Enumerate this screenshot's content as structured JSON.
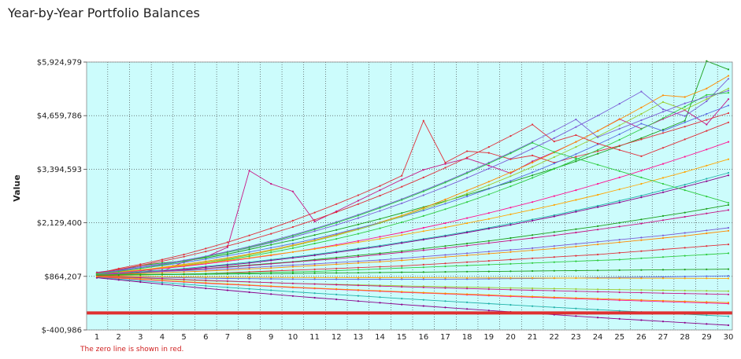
{
  "page": {
    "title": "Year-by-Year Portfolio Balances",
    "footnote": "The zero line is shown in red."
  },
  "colors": {
    "plot_background": "#ccfcfc",
    "zero_line": "#e03030",
    "grid": "#333333",
    "series_palette": [
      "#1aa01a",
      "#c71585",
      "#ff8c00",
      "#7b5ed6",
      "#e0303a",
      "#2ecc40",
      "#5b6ee1",
      "#9acd32",
      "#ff1493",
      "#20b2aa",
      "#8b008b",
      "#ffa500"
    ]
  },
  "chart_data": {
    "type": "line",
    "title": "",
    "xlabel": "",
    "ylabel": "Value",
    "x": [
      1,
      2,
      3,
      4,
      5,
      6,
      7,
      8,
      9,
      10,
      11,
      12,
      13,
      14,
      15,
      16,
      17,
      18,
      19,
      20,
      21,
      22,
      23,
      24,
      25,
      26,
      27,
      28,
      29,
      30
    ],
    "ylim": [
      -400986,
      5924979
    ],
    "y_ticks": [
      -400986,
      864207,
      2129400,
      3394593,
      4659786,
      5924979
    ],
    "y_tick_labels": [
      "$-400,986",
      "$864,207",
      "$2,129,400",
      "$3,394,593",
      "$4,659,786",
      "$5,924,979"
    ],
    "grid": true,
    "legend": "none",
    "zero_line": 0,
    "series": [
      {
        "values": [
          950000,
          1000000,
          1120000,
          1180000,
          1230000,
          1300000,
          1390000,
          1500000,
          1610000,
          1720000,
          1840000,
          1960000,
          2090000,
          2220000,
          2360000,
          2500000,
          2640000,
          2790000,
          2940000,
          3090000,
          3250000,
          3410000,
          3580000,
          3760000,
          3940000,
          4130000,
          4330000,
          4540000,
          5950000,
          5750000
        ]
      },
      {
        "values": [
          950000,
          900000,
          1020000,
          980000,
          1210000,
          1320000,
          1550000,
          3360000,
          3050000,
          2870000,
          2160000,
          2400000,
          2650000,
          2900000,
          3150000,
          3380000,
          3520000,
          3650000,
          3480000,
          3300000,
          3580000,
          3800000,
          4040000,
          4300000,
          4580000,
          4350000,
          4580000,
          4790000,
          4450000,
          5050000
        ]
      },
      {
        "values": [
          920000,
          960000,
          1010000,
          1080000,
          1150000,
          1220000,
          1300000,
          1390000,
          1490000,
          1600000,
          1720000,
          1850000,
          1990000,
          2140000,
          2300000,
          2480000,
          2680000,
          2890000,
          3100000,
          3320000,
          3550000,
          3790000,
          4040000,
          4300000,
          4570000,
          4850000,
          5140000,
          5100000,
          5300000,
          5600000
        ]
      },
      {
        "values": [
          960000,
          1020000,
          1090000,
          1160000,
          1240000,
          1330000,
          1430000,
          1540000,
          1660000,
          1790000,
          1930000,
          2080000,
          2240000,
          2410000,
          2590000,
          2780000,
          2980000,
          3190000,
          3410000,
          3640000,
          3880000,
          4130000,
          4390000,
          4660000,
          4940000,
          5230000,
          4810000,
          4650000,
          5000000,
          5530000
        ]
      },
      {
        "values": [
          930000,
          1050000,
          1150000,
          1260000,
          1380000,
          1520000,
          1670000,
          1830000,
          2000000,
          2180000,
          2370000,
          2570000,
          2780000,
          3000000,
          3240000,
          4540000,
          3550000,
          3820000,
          3780000,
          3630000,
          3720000,
          3550000,
          3690000,
          3820000,
          3950000,
          4100000,
          4250000,
          4400000,
          4560000,
          4720000
        ]
      },
      {
        "values": [
          900000,
          940000,
          990000,
          1050000,
          1110000,
          1180000,
          1260000,
          1340000,
          1430000,
          1530000,
          1640000,
          1750000,
          1870000,
          2000000,
          2140000,
          2290000,
          2450000,
          2620000,
          2800000,
          2990000,
          3190000,
          3400000,
          3620000,
          3850000,
          4090000,
          4340000,
          4600000,
          4870000,
          5150000,
          5200000
        ]
      },
      {
        "values": [
          940000,
          990000,
          1050000,
          1120000,
          1190000,
          1270000,
          1350000,
          1440000,
          1540000,
          1640000,
          1750000,
          1870000,
          2000000,
          2130000,
          2270000,
          2420000,
          2580000,
          2750000,
          2930000,
          3120000,
          3320000,
          3530000,
          3750000,
          3980000,
          4220000,
          4470000,
          4300000,
          4500000,
          4700000,
          4900000
        ]
      },
      {
        "values": [
          910000,
          950000,
          1000000,
          1060000,
          1130000,
          1200000,
          1280000,
          1370000,
          1470000,
          1580000,
          1700000,
          1830000,
          1970000,
          2120000,
          2280000,
          2450000,
          2630000,
          2820000,
          3020000,
          3230000,
          3450000,
          3680000,
          3920000,
          4170000,
          4430000,
          4700000,
          4980000,
          4800000,
          5050000,
          5300000
        ]
      },
      {
        "values": [
          920000,
          960000,
          1000000,
          1050000,
          1100000,
          1160000,
          1220000,
          1290000,
          1360000,
          1440000,
          1520000,
          1610000,
          1700000,
          1800000,
          1900000,
          2010000,
          2120000,
          2240000,
          2360000,
          2490000,
          2620000,
          2760000,
          2900000,
          3050000,
          3200000,
          3360000,
          3520000,
          3690000,
          3860000,
          4040000
        ]
      },
      {
        "values": [
          900000,
          930000,
          970000,
          1010000,
          1050000,
          1100000,
          1150000,
          1200000,
          1260000,
          1320000,
          1380000,
          1450000,
          1520000,
          1590000,
          1670000,
          1750000,
          1830000,
          1920000,
          2010000,
          2110000,
          2210000,
          2310000,
          2420000,
          2530000,
          2650000,
          2770000,
          2900000,
          3030000,
          3170000,
          3310000
        ]
      },
      {
        "values": [
          880000,
          910000,
          950000,
          990000,
          1030000,
          1080000,
          1130000,
          1180000,
          1240000,
          1300000,
          1360000,
          1430000,
          1500000,
          1570000,
          1650000,
          1730000,
          1810000,
          1900000,
          1990000,
          2080000,
          2180000,
          2280000,
          2390000,
          2500000,
          2610000,
          2730000,
          2850000,
          2980000,
          3110000,
          3250000
        ]
      },
      {
        "values": [
          930000,
          970000,
          1020000,
          1070000,
          1120000,
          1180000,
          1240000,
          1300000,
          1370000,
          1440000,
          1510000,
          1590000,
          1670000,
          1750000,
          1840000,
          1930000,
          2020000,
          2120000,
          2220000,
          2330000,
          2440000,
          2550000,
          2670000,
          2790000,
          2920000,
          3050000,
          3190000,
          3330000,
          3480000,
          3630000
        ]
      },
      {
        "values": [
          890000,
          920000,
          950000,
          980000,
          1010000,
          1050000,
          1090000,
          1130000,
          1170000,
          1210000,
          1260000,
          1310000,
          1360000,
          1410000,
          1460000,
          1520000,
          1580000,
          1640000,
          1700000,
          1770000,
          1840000,
          1910000,
          1980000,
          2050000,
          2130000,
          2210000,
          2290000,
          2370000,
          2460000,
          2550000
        ]
      },
      {
        "values": [
          910000,
          930000,
          960000,
          990000,
          1020000,
          1050000,
          1080000,
          1120000,
          1160000,
          1200000,
          1240000,
          1280000,
          1330000,
          1380000,
          1430000,
          1480000,
          1530000,
          1590000,
          1650000,
          1710000,
          1770000,
          1830000,
          1900000,
          1970000,
          2040000,
          2110000,
          2190000,
          2270000,
          2350000,
          2430000
        ]
      },
      {
        "values": [
          900000,
          910000,
          930000,
          950000,
          970000,
          990000,
          1010000,
          1040000,
          1060000,
          1090000,
          1120000,
          1150000,
          1180000,
          1210000,
          1240000,
          1280000,
          1320000,
          1360000,
          1400000,
          1440000,
          1480000,
          1520000,
          1570000,
          1620000,
          1670000,
          1720000,
          1770000,
          1820000,
          1880000,
          1940000
        ]
      },
      {
        "values": [
          920000,
          940000,
          960000,
          980000,
          1000000,
          1020000,
          1040000,
          1070000,
          1100000,
          1130000,
          1160000,
          1190000,
          1220000,
          1250000,
          1290000,
          1330000,
          1370000,
          1410000,
          1450000,
          1490000,
          1530000,
          1580000,
          1630000,
          1680000,
          1730000,
          1780000,
          1830000,
          1890000,
          1950000,
          2010000
        ]
      },
      {
        "values": [
          880000,
          890000,
          900000,
          910000,
          920000,
          930000,
          950000,
          970000,
          990000,
          1010000,
          1030000,
          1050000,
          1070000,
          1090000,
          1110000,
          1140000,
          1170000,
          1200000,
          1230000,
          1260000,
          1290000,
          1320000,
          1350000,
          1380000,
          1420000,
          1460000,
          1500000,
          1540000,
          1580000,
          1620000
        ]
      },
      {
        "values": [
          900000,
          905000,
          910000,
          915000,
          920000,
          930000,
          940000,
          950000,
          960000,
          970000,
          980000,
          1000000,
          1020000,
          1040000,
          1060000,
          1080000,
          1100000,
          1120000,
          1140000,
          1160000,
          1180000,
          1200000,
          1220000,
          1240000,
          1260000,
          1290000,
          1320000,
          1350000,
          1380000,
          1410000
        ]
      },
      {
        "values": [
          870000,
          860000,
          850000,
          840000,
          830000,
          820000,
          815000,
          810000,
          805000,
          800000,
          798000,
          796000,
          795000,
          795000,
          795000,
          796000,
          798000,
          800000,
          805000,
          810000,
          815000,
          820000,
          826000,
          832000,
          838000,
          845000,
          852000,
          860000,
          868000,
          876000
        ]
      },
      {
        "values": [
          860000,
          840000,
          820000,
          800000,
          780000,
          760000,
          745000,
          730000,
          715000,
          700000,
          688000,
          676000,
          664000,
          652000,
          640000,
          630000,
          620000,
          610000,
          600000,
          590000,
          582000,
          574000,
          566000,
          558000,
          550000,
          543000,
          536000,
          529000,
          522000,
          515000
        ]
      },
      {
        "values": [
          850000,
          820000,
          790000,
          760000,
          730000,
          700000,
          675000,
          650000,
          625000,
          600000,
          578000,
          556000,
          534000,
          512000,
          490000,
          470000,
          450000,
          430000,
          410000,
          390000,
          372000,
          354000,
          336000,
          318000,
          300000,
          284000,
          268000,
          252000,
          236000,
          220000
        ]
      },
      {
        "values": [
          840000,
          800000,
          760000,
          720000,
          680000,
          640000,
          605000,
          570000,
          535000,
          500000,
          468000,
          436000,
          404000,
          372000,
          340000,
          310000,
          280000,
          250000,
          220000,
          190000,
          162000,
          134000,
          106000,
          78000,
          50000,
          24000,
          -2000,
          -28000,
          -54000,
          -80000
        ]
      },
      {
        "values": [
          830000,
          780000,
          730000,
          680000,
          630000,
          580000,
          535000,
          490000,
          445000,
          400000,
          360000,
          320000,
          280000,
          240000,
          200000,
          165000,
          130000,
          95000,
          60000,
          25000,
          -8000,
          -41000,
          -74000,
          -107000,
          -140000,
          -170000,
          -200000,
          -230000,
          -260000,
          -290000
        ]
      },
      {
        "values": [
          880000,
          870000,
          860000,
          855000,
          850000,
          845000,
          842000,
          840000,
          838000,
          836000,
          835000,
          834000,
          833000,
          832000,
          831000,
          830000,
          829000,
          828000,
          827000,
          826000,
          825000,
          824000,
          823000,
          822000,
          821000,
          820000,
          819000,
          818000,
          817000,
          816000
        ]
      },
      {
        "values": [
          890000,
          895000,
          900000,
          905000,
          910000,
          915000,
          920000,
          925000,
          930000,
          935000,
          940000,
          945000,
          950000,
          955000,
          960000,
          965000,
          970000,
          975000,
          980000,
          985000,
          990000,
          995000,
          1000000,
          1005000,
          1010000,
          1015000,
          1020000,
          1025000,
          1030000,
          1035000
        ]
      },
      {
        "values": [
          870000,
          850000,
          830000,
          810000,
          790000,
          770000,
          752000,
          734000,
          716000,
          698000,
          682000,
          666000,
          650000,
          634000,
          618000,
          604000,
          590000,
          576000,
          562000,
          548000,
          536000,
          524000,
          512000,
          500000,
          488000,
          478000,
          468000,
          458000,
          448000,
          438000
        ]
      },
      {
        "values": [
          860000,
          830000,
          800000,
          770000,
          740000,
          710000,
          685000,
          660000,
          635000,
          610000,
          588000,
          566000,
          544000,
          522000,
          500000,
          481000,
          462000,
          443000,
          424000,
          405000,
          388000,
          371000,
          354000,
          337000,
          320000,
          305000,
          290000,
          275000,
          260000,
          245000
        ]
      },
      {
        "values": [
          940000,
          1000000,
          1070000,
          1150000,
          1240000,
          1340000,
          1450000,
          1570000,
          1700000,
          1840000,
          1990000,
          2150000,
          2320000,
          2500000,
          2690000,
          2890000,
          3100000,
          3320000,
          3550000,
          3790000,
          4040000,
          4300000,
          4570000,
          4150000,
          4350000,
          4550000,
          4750000,
          4950000,
          5100000,
          5250000
        ]
      },
      {
        "values": [
          950000,
          1030000,
          1120000,
          1220000,
          1330000,
          1450000,
          1580000,
          1720000,
          1870000,
          2030000,
          2200000,
          2380000,
          2570000,
          2770000,
          2980000,
          3200000,
          3430000,
          3670000,
          3920000,
          4180000,
          4450000,
          4050000,
          4200000,
          4000000,
          3850000,
          3700000,
          3900000,
          4100000,
          4300000,
          4500000
        ]
      },
      {
        "values": [
          920000,
          980000,
          1050000,
          1130000,
          1220000,
          1320000,
          1430000,
          1550000,
          1680000,
          1820000,
          1970000,
          2130000,
          2300000,
          2480000,
          2670000,
          2870000,
          3080000,
          3300000,
          3530000,
          3770000,
          4020000,
          3800000,
          3650000,
          3500000,
          3350000,
          3200000,
          3050000,
          2900000,
          2750000,
          2600000
        ]
      }
    ]
  }
}
